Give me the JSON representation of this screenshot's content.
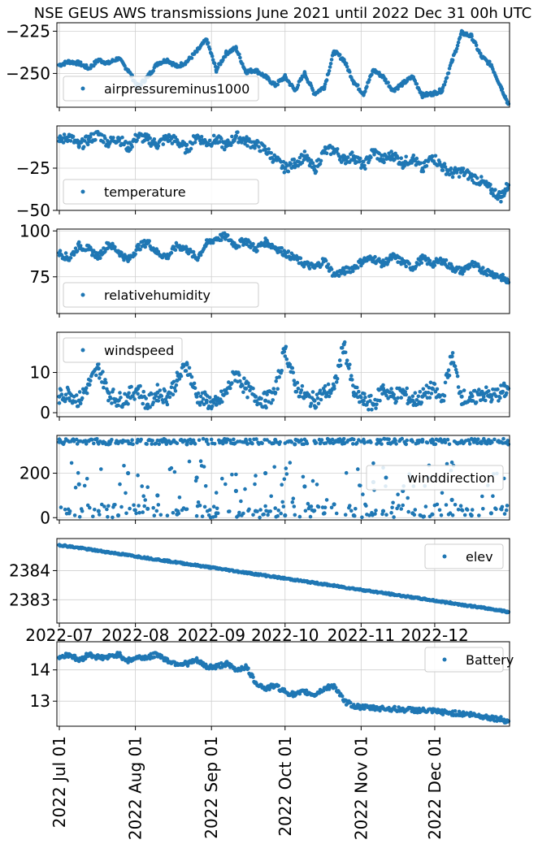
{
  "title": "NSE GEUS AWS transmissions June 2021 until 2022 Dec 31 00h UTC",
  "colors": {
    "series": "#1f77b4",
    "grid": "#cfcfcf"
  },
  "chart_data": [
    {
      "type": "scatter",
      "series": [
        {
          "name": "airpressureminus1000"
        }
      ],
      "legend": "lower-left",
      "grid": true,
      "ylim": [
        -270,
        -220
      ],
      "yticks": [
        -225,
        -250
      ],
      "ytick_labels": [
        "−225",
        "−250"
      ],
      "x": [
        "2022-07-01",
        "2022-07-05",
        "2022-07-09",
        "2022-07-13",
        "2022-07-17",
        "2022-07-21",
        "2022-07-25",
        "2022-07-29",
        "2022-08-02",
        "2022-08-06",
        "2022-08-10",
        "2022-08-14",
        "2022-08-18",
        "2022-08-22",
        "2022-08-26",
        "2022-08-30",
        "2022-09-03",
        "2022-09-07",
        "2022-09-11",
        "2022-09-15",
        "2022-09-19",
        "2022-09-23",
        "2022-09-27",
        "2022-10-01",
        "2022-10-05",
        "2022-10-09",
        "2022-10-13",
        "2022-10-17",
        "2022-10-21",
        "2022-10-25",
        "2022-10-29",
        "2022-11-02",
        "2022-11-06",
        "2022-11-10",
        "2022-11-14",
        "2022-11-18",
        "2022-11-22",
        "2022-11-26",
        "2022-11-30",
        "2022-12-04",
        "2022-12-08",
        "2022-12-12",
        "2022-12-16",
        "2022-12-20",
        "2022-12-24",
        "2022-12-28",
        "2022-12-31"
      ],
      "values": [
        -245,
        -243,
        -244,
        -247,
        -242,
        -244,
        -241,
        -248,
        -258,
        -252,
        -244,
        -242,
        -246,
        -243,
        -237,
        -230,
        -248,
        -238,
        -235,
        -249,
        -248,
        -252,
        -257,
        -252,
        -260,
        -250,
        -262,
        -258,
        -237,
        -242,
        -255,
        -262,
        -248,
        -252,
        -260,
        -256,
        -252,
        -263,
        -262,
        -260,
        -243,
        -226,
        -228,
        -240,
        -245,
        -258,
        -268
      ]
    },
    {
      "type": "scatter",
      "series": [
        {
          "name": "temperature"
        }
      ],
      "legend": "lower-left",
      "grid": true,
      "ylim": [
        -50,
        0
      ],
      "yticks": [
        -25,
        -50
      ],
      "ytick_labels": [
        "−25",
        "−50"
      ],
      "x": [
        "2022-07-01",
        "2022-07-05",
        "2022-07-09",
        "2022-07-13",
        "2022-07-17",
        "2022-07-21",
        "2022-07-25",
        "2022-07-29",
        "2022-08-02",
        "2022-08-06",
        "2022-08-10",
        "2022-08-14",
        "2022-08-18",
        "2022-08-22",
        "2022-08-26",
        "2022-08-30",
        "2022-09-03",
        "2022-09-07",
        "2022-09-11",
        "2022-09-15",
        "2022-09-19",
        "2022-09-23",
        "2022-09-27",
        "2022-10-01",
        "2022-10-05",
        "2022-10-09",
        "2022-10-13",
        "2022-10-17",
        "2022-10-21",
        "2022-10-25",
        "2022-10-29",
        "2022-11-02",
        "2022-11-06",
        "2022-11-10",
        "2022-11-14",
        "2022-11-18",
        "2022-11-22",
        "2022-11-26",
        "2022-11-30",
        "2022-12-04",
        "2022-12-08",
        "2022-12-12",
        "2022-12-16",
        "2022-12-20",
        "2022-12-24",
        "2022-12-28",
        "2022-12-31"
      ],
      "values": [
        -9,
        -6,
        -12,
        -8,
        -5,
        -10,
        -7,
        -13,
        -6,
        -8,
        -11,
        -7,
        -9,
        -14,
        -6,
        -10,
        -8,
        -12,
        -6,
        -9,
        -11,
        -14,
        -20,
        -25,
        -22,
        -18,
        -26,
        -15,
        -14,
        -20,
        -18,
        -24,
        -15,
        -20,
        -17,
        -22,
        -19,
        -26,
        -18,
        -24,
        -28,
        -27,
        -30,
        -33,
        -38,
        -42,
        -35
      ]
    },
    {
      "type": "scatter",
      "series": [
        {
          "name": "relativehumidity"
        }
      ],
      "legend": "lower-left",
      "grid": true,
      "ylim": [
        55,
        101
      ],
      "yticks": [
        100,
        75
      ],
      "ytick_labels": [
        "100",
        "75"
      ],
      "x": [
        "2022-07-01",
        "2022-07-05",
        "2022-07-09",
        "2022-07-13",
        "2022-07-17",
        "2022-07-21",
        "2022-07-25",
        "2022-07-29",
        "2022-08-02",
        "2022-08-06",
        "2022-08-10",
        "2022-08-14",
        "2022-08-18",
        "2022-08-22",
        "2022-08-26",
        "2022-08-30",
        "2022-09-03",
        "2022-09-07",
        "2022-09-11",
        "2022-09-15",
        "2022-09-19",
        "2022-09-23",
        "2022-09-27",
        "2022-10-01",
        "2022-10-05",
        "2022-10-09",
        "2022-10-13",
        "2022-10-17",
        "2022-10-21",
        "2022-10-25",
        "2022-10-29",
        "2022-11-02",
        "2022-11-06",
        "2022-11-10",
        "2022-11-14",
        "2022-11-18",
        "2022-11-22",
        "2022-11-26",
        "2022-11-30",
        "2022-12-04",
        "2022-12-08",
        "2022-12-12",
        "2022-12-16",
        "2022-12-20",
        "2022-12-24",
        "2022-12-28",
        "2022-12-31"
      ],
      "values": [
        88,
        85,
        92,
        90,
        86,
        93,
        89,
        84,
        91,
        94,
        88,
        86,
        92,
        90,
        85,
        93,
        96,
        97,
        92,
        95,
        90,
        94,
        91,
        88,
        85,
        82,
        80,
        84,
        76,
        78,
        80,
        84,
        85,
        82,
        86,
        83,
        80,
        85,
        82,
        84,
        80,
        78,
        82,
        79,
        77,
        75,
        72
      ]
    },
    {
      "type": "scatter",
      "series": [
        {
          "name": "windspeed"
        }
      ],
      "legend": "upper-left",
      "grid": true,
      "ylim": [
        -1,
        20
      ],
      "yticks": [
        10,
        0
      ],
      "ytick_labels": [
        "10",
        "0"
      ],
      "x": [
        "2022-07-01",
        "2022-07-05",
        "2022-07-09",
        "2022-07-13",
        "2022-07-17",
        "2022-07-21",
        "2022-07-25",
        "2022-07-29",
        "2022-08-02",
        "2022-08-06",
        "2022-08-10",
        "2022-08-14",
        "2022-08-18",
        "2022-08-22",
        "2022-08-26",
        "2022-08-30",
        "2022-09-03",
        "2022-09-07",
        "2022-09-11",
        "2022-09-15",
        "2022-09-19",
        "2022-09-23",
        "2022-09-27",
        "2022-10-01",
        "2022-10-05",
        "2022-10-09",
        "2022-10-13",
        "2022-10-17",
        "2022-10-21",
        "2022-10-25",
        "2022-10-29",
        "2022-11-02",
        "2022-11-06",
        "2022-11-10",
        "2022-11-14",
        "2022-11-18",
        "2022-11-22",
        "2022-11-26",
        "2022-11-30",
        "2022-12-04",
        "2022-12-08",
        "2022-12-12",
        "2022-12-16",
        "2022-12-20",
        "2022-12-24",
        "2022-12-28",
        "2022-12-31"
      ],
      "values": [
        4,
        5,
        3,
        7,
        11,
        5,
        3,
        4,
        6,
        2,
        5,
        4,
        8,
        12,
        4,
        3,
        2,
        5,
        10,
        6,
        4,
        3,
        5,
        16,
        7,
        4,
        3,
        5,
        6,
        17,
        5,
        3,
        2,
        6,
        4,
        5,
        3,
        4,
        6,
        3,
        14,
        4,
        3,
        5,
        4,
        5,
        6
      ]
    },
    {
      "type": "scatter",
      "series": [
        {
          "name": "winddirection"
        }
      ],
      "legend": "center-right",
      "grid": true,
      "ylim": [
        -10,
        370
      ],
      "yticks": [
        200,
        0
      ],
      "ytick_labels": [
        "200",
        "0"
      ],
      "x": [
        "2022-07-01",
        "2022-07-05",
        "2022-07-09",
        "2022-07-13",
        "2022-07-17",
        "2022-07-21",
        "2022-07-25",
        "2022-07-29",
        "2022-08-02",
        "2022-08-06",
        "2022-08-10",
        "2022-08-14",
        "2022-08-18",
        "2022-08-22",
        "2022-08-26",
        "2022-08-30",
        "2022-09-03",
        "2022-09-07",
        "2022-09-11",
        "2022-09-15",
        "2022-09-19",
        "2022-09-23",
        "2022-09-27",
        "2022-10-01",
        "2022-10-05",
        "2022-10-09",
        "2022-10-13",
        "2022-10-17",
        "2022-10-21",
        "2022-10-25",
        "2022-10-29",
        "2022-11-02",
        "2022-11-06",
        "2022-11-10",
        "2022-11-14",
        "2022-11-18",
        "2022-11-22",
        "2022-11-26",
        "2022-11-30",
        "2022-12-04",
        "2022-12-08",
        "2022-12-12",
        "2022-12-16",
        "2022-12-20",
        "2022-12-24",
        "2022-12-28",
        "2022-12-31"
      ],
      "values": [
        340,
        20,
        150,
        345,
        30,
        330,
        10,
        200,
        350,
        40,
        100,
        340,
        15,
        330,
        180,
        350,
        20,
        340,
        120,
        345,
        30,
        200,
        350,
        10,
        330,
        140,
        345,
        20,
        60,
        335,
        10,
        345,
        160,
        30,
        340,
        120,
        20,
        350,
        15,
        340,
        80,
        345,
        10,
        335,
        20,
        340,
        330
      ]
    },
    {
      "type": "scatter",
      "series": [
        {
          "name": "elev"
        }
      ],
      "legend": "upper-right",
      "grid": true,
      "ylim": [
        2382.2,
        2385.1
      ],
      "yticks": [
        2384,
        2383
      ],
      "ytick_labels": [
        "2384",
        "2383"
      ],
      "x_axis_tick_labels": [
        "2022-07",
        "2022-08",
        "2022-09",
        "2022-10",
        "2022-11",
        "2022-12"
      ],
      "x": [
        "2022-07-01",
        "2022-07-05",
        "2022-07-09",
        "2022-07-13",
        "2022-07-17",
        "2022-07-21",
        "2022-07-25",
        "2022-07-29",
        "2022-08-02",
        "2022-08-06",
        "2022-08-10",
        "2022-08-14",
        "2022-08-18",
        "2022-08-22",
        "2022-08-26",
        "2022-08-30",
        "2022-09-03",
        "2022-09-07",
        "2022-09-11",
        "2022-09-15",
        "2022-09-19",
        "2022-09-23",
        "2022-09-27",
        "2022-10-01",
        "2022-10-05",
        "2022-10-09",
        "2022-10-13",
        "2022-10-17",
        "2022-10-21",
        "2022-10-25",
        "2022-10-29",
        "2022-11-02",
        "2022-11-06",
        "2022-11-10",
        "2022-11-14",
        "2022-11-18",
        "2022-11-22",
        "2022-11-26",
        "2022-11-30",
        "2022-12-04",
        "2022-12-08",
        "2022-12-12",
        "2022-12-16",
        "2022-12-20",
        "2022-12-24",
        "2022-12-28",
        "2022-12-31"
      ],
      "values": [
        2384.88,
        2384.83,
        2384.78,
        2384.73,
        2384.68,
        2384.63,
        2384.58,
        2384.53,
        2384.48,
        2384.43,
        2384.38,
        2384.33,
        2384.28,
        2384.23,
        2384.18,
        2384.13,
        2384.08,
        2384.03,
        2383.98,
        2383.93,
        2383.88,
        2383.83,
        2383.78,
        2383.73,
        2383.68,
        2383.63,
        2383.58,
        2383.53,
        2383.48,
        2383.43,
        2383.38,
        2383.33,
        2383.28,
        2383.23,
        2383.18,
        2383.13,
        2383.08,
        2383.03,
        2382.98,
        2382.93,
        2382.88,
        2382.83,
        2382.78,
        2382.73,
        2382.68,
        2382.63,
        2382.58
      ]
    },
    {
      "type": "scatter",
      "series": [
        {
          "name": "Battery"
        }
      ],
      "legend": "upper-right",
      "grid": true,
      "ylim": [
        12.2,
        14.9
      ],
      "yticks": [
        14,
        13
      ],
      "ytick_labels": [
        "14",
        "13"
      ],
      "xtick_labels": [
        "2022 Jul 01",
        "2022 Aug 01",
        "2022 Sep 01",
        "2022 Oct 01",
        "2022 Nov 01",
        "2022 Dec 01"
      ],
      "x": [
        "2022-07-01",
        "2022-07-05",
        "2022-07-09",
        "2022-07-13",
        "2022-07-17",
        "2022-07-21",
        "2022-07-25",
        "2022-07-29",
        "2022-08-02",
        "2022-08-06",
        "2022-08-10",
        "2022-08-14",
        "2022-08-18",
        "2022-08-22",
        "2022-08-26",
        "2022-08-30",
        "2022-09-03",
        "2022-09-07",
        "2022-09-11",
        "2022-09-15",
        "2022-09-19",
        "2022-09-23",
        "2022-09-27",
        "2022-10-01",
        "2022-10-05",
        "2022-10-09",
        "2022-10-13",
        "2022-10-17",
        "2022-10-21",
        "2022-10-25",
        "2022-10-29",
        "2022-11-02",
        "2022-11-06",
        "2022-11-10",
        "2022-11-14",
        "2022-11-18",
        "2022-11-22",
        "2022-11-26",
        "2022-11-30",
        "2022-12-04",
        "2022-12-08",
        "2022-12-12",
        "2022-12-16",
        "2022-12-20",
        "2022-12-24",
        "2022-12-28",
        "2022-12-31"
      ],
      "values": [
        14.4,
        14.5,
        14.3,
        14.5,
        14.4,
        14.4,
        14.5,
        14.3,
        14.4,
        14.4,
        14.5,
        14.3,
        14.2,
        14.2,
        14.3,
        14.1,
        14.1,
        14.2,
        14.0,
        14.1,
        13.6,
        13.4,
        13.5,
        13.3,
        13.2,
        13.3,
        13.2,
        13.4,
        13.5,
        13.0,
        12.85,
        12.8,
        12.78,
        12.77,
        12.75,
        12.73,
        12.72,
        12.7,
        12.68,
        12.65,
        12.62,
        12.6,
        12.57,
        12.52,
        12.47,
        12.42,
        12.36
      ]
    }
  ]
}
